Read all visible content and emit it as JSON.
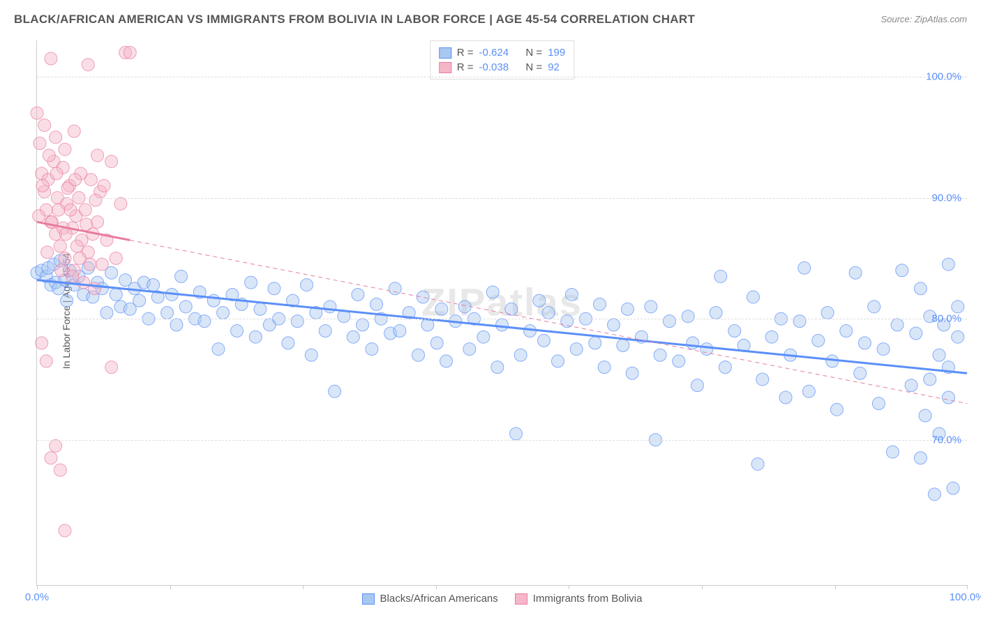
{
  "title": "BLACK/AFRICAN AMERICAN VS IMMIGRANTS FROM BOLIVIA IN LABOR FORCE | AGE 45-54 CORRELATION CHART",
  "source": "Source: ZipAtlas.com",
  "ylabel": "In Labor Force | Age 45-54",
  "watermark": "ZIPatlas",
  "chart": {
    "type": "scatter",
    "xlim": [
      0,
      100
    ],
    "ylim": [
      58,
      103
    ],
    "ytick_positions": [
      70,
      80,
      90,
      100
    ],
    "ytick_labels": [
      "70.0%",
      "80.0%",
      "90.0%",
      "100.0%"
    ],
    "xtick_positions": [
      0,
      14.3,
      28.6,
      42.9,
      57.2,
      71.5,
      85.8,
      100
    ],
    "xtick_labels_shown": {
      "0": "0.0%",
      "100": "100.0%"
    },
    "background_color": "#ffffff",
    "grid_color": "#dddddd",
    "marker_radius": 9,
    "marker_opacity": 0.45,
    "regression_line_width_solid": 3,
    "regression_line_width_dash": 1,
    "series": [
      {
        "name": "Blacks/African Americans",
        "color_fill": "#a9c8f0",
        "color_stroke": "#5b8ff9",
        "regression": {
          "x1": 0,
          "y1": 83.2,
          "x2": 100,
          "y2": 75.5,
          "solid_until_x": 100
        },
        "stats": {
          "R": "-0.624",
          "N": "199"
        },
        "points": [
          [
            0,
            83.8
          ],
          [
            0.5,
            84.0
          ],
          [
            1,
            83.5
          ],
          [
            1.2,
            84.2
          ],
          [
            1.5,
            82.8
          ],
          [
            1.8,
            84.5
          ],
          [
            2,
            83.0
          ],
          [
            2.3,
            82.5
          ],
          [
            2.5,
            84.8
          ],
          [
            3,
            83.2
          ],
          [
            3.2,
            81.5
          ],
          [
            3.5,
            84.0
          ],
          [
            4,
            82.8
          ],
          [
            4.5,
            83.5
          ],
          [
            5,
            82.0
          ],
          [
            5.5,
            84.2
          ],
          [
            6,
            81.8
          ],
          [
            6.5,
            83.0
          ],
          [
            7,
            82.5
          ],
          [
            7.5,
            80.5
          ],
          [
            8,
            83.8
          ],
          [
            8.5,
            82.0
          ],
          [
            9,
            81.0
          ],
          [
            9.5,
            83.2
          ],
          [
            10,
            80.8
          ],
          [
            10.5,
            82.5
          ],
          [
            11,
            81.5
          ],
          [
            11.5,
            83.0
          ],
          [
            12,
            80.0
          ],
          [
            12.5,
            82.8
          ],
          [
            13,
            81.8
          ],
          [
            14,
            80.5
          ],
          [
            14.5,
            82.0
          ],
          [
            15,
            79.5
          ],
          [
            15.5,
            83.5
          ],
          [
            16,
            81.0
          ],
          [
            17,
            80.0
          ],
          [
            17.5,
            82.2
          ],
          [
            18,
            79.8
          ],
          [
            19,
            81.5
          ],
          [
            19.5,
            77.5
          ],
          [
            20,
            80.5
          ],
          [
            21,
            82.0
          ],
          [
            21.5,
            79.0
          ],
          [
            22,
            81.2
          ],
          [
            23,
            83.0
          ],
          [
            23.5,
            78.5
          ],
          [
            24,
            80.8
          ],
          [
            25,
            79.5
          ],
          [
            25.5,
            82.5
          ],
          [
            26,
            80.0
          ],
          [
            27,
            78.0
          ],
          [
            27.5,
            81.5
          ],
          [
            28,
            79.8
          ],
          [
            29,
            82.8
          ],
          [
            29.5,
            77.0
          ],
          [
            30,
            80.5
          ],
          [
            31,
            79.0
          ],
          [
            31.5,
            81.0
          ],
          [
            32,
            74.0
          ],
          [
            33,
            80.2
          ],
          [
            34,
            78.5
          ],
          [
            34.5,
            82.0
          ],
          [
            35,
            79.5
          ],
          [
            36,
            77.5
          ],
          [
            36.5,
            81.2
          ],
          [
            37,
            80.0
          ],
          [
            38,
            78.8
          ],
          [
            38.5,
            82.5
          ],
          [
            39,
            79.0
          ],
          [
            40,
            80.5
          ],
          [
            41,
            77.0
          ],
          [
            41.5,
            81.8
          ],
          [
            42,
            79.5
          ],
          [
            43,
            78.0
          ],
          [
            43.5,
            80.8
          ],
          [
            44,
            76.5
          ],
          [
            45,
            79.8
          ],
          [
            46,
            81.0
          ],
          [
            46.5,
            77.5
          ],
          [
            47,
            80.0
          ],
          [
            48,
            78.5
          ],
          [
            49,
            82.2
          ],
          [
            49.5,
            76.0
          ],
          [
            50,
            79.5
          ],
          [
            51,
            80.8
          ],
          [
            51.5,
            70.5
          ],
          [
            52,
            77.0
          ],
          [
            53,
            79.0
          ],
          [
            54,
            81.5
          ],
          [
            54.5,
            78.2
          ],
          [
            55,
            80.5
          ],
          [
            56,
            76.5
          ],
          [
            57,
            79.8
          ],
          [
            57.5,
            82.0
          ],
          [
            58,
            77.5
          ],
          [
            59,
            80.0
          ],
          [
            60,
            78.0
          ],
          [
            60.5,
            81.2
          ],
          [
            61,
            76.0
          ],
          [
            62,
            79.5
          ],
          [
            63,
            77.8
          ],
          [
            63.5,
            80.8
          ],
          [
            64,
            75.5
          ],
          [
            65,
            78.5
          ],
          [
            66,
            81.0
          ],
          [
            66.5,
            70.0
          ],
          [
            67,
            77.0
          ],
          [
            68,
            79.8
          ],
          [
            69,
            76.5
          ],
          [
            70,
            80.2
          ],
          [
            70.5,
            78.0
          ],
          [
            71,
            74.5
          ],
          [
            72,
            77.5
          ],
          [
            73,
            80.5
          ],
          [
            73.5,
            83.5
          ],
          [
            74,
            76.0
          ],
          [
            75,
            79.0
          ],
          [
            76,
            77.8
          ],
          [
            77,
            81.8
          ],
          [
            77.5,
            68.0
          ],
          [
            78,
            75.0
          ],
          [
            79,
            78.5
          ],
          [
            80,
            80.0
          ],
          [
            80.5,
            73.5
          ],
          [
            81,
            77.0
          ],
          [
            82,
            79.8
          ],
          [
            82.5,
            84.2
          ],
          [
            83,
            74.0
          ],
          [
            84,
            78.2
          ],
          [
            85,
            80.5
          ],
          [
            85.5,
            76.5
          ],
          [
            86,
            72.5
          ],
          [
            87,
            79.0
          ],
          [
            88,
            83.8
          ],
          [
            88.5,
            75.5
          ],
          [
            89,
            78.0
          ],
          [
            90,
            81.0
          ],
          [
            90.5,
            73.0
          ],
          [
            91,
            77.5
          ],
          [
            92,
            69.0
          ],
          [
            92.5,
            79.5
          ],
          [
            93,
            84.0
          ],
          [
            94,
            74.5
          ],
          [
            94.5,
            78.8
          ],
          [
            95,
            82.5
          ],
          [
            95.5,
            72.0
          ],
          [
            96,
            80.2
          ],
          [
            96.5,
            65.5
          ],
          [
            97,
            77.0
          ],
          [
            97.5,
            79.5
          ],
          [
            98,
            73.5
          ],
          [
            98.5,
            66.0
          ],
          [
            98,
            84.5
          ],
          [
            99,
            78.5
          ],
          [
            97,
            70.5
          ],
          [
            96,
            75.0
          ],
          [
            95,
            68.5
          ],
          [
            99,
            81.0
          ],
          [
            98,
            76.0
          ]
        ]
      },
      {
        "name": "Immigrants from Bolivia",
        "color_fill": "#f5b6c8",
        "color_stroke": "#e87ca0",
        "regression": {
          "x1": 0,
          "y1": 88.0,
          "x2": 100,
          "y2": 73.0,
          "solid_until_x": 10
        },
        "stats": {
          "R": "-0.038",
          "N": "92"
        },
        "points": [
          [
            0,
            97.0
          ],
          [
            0.3,
            94.5
          ],
          [
            0.5,
            92.0
          ],
          [
            0.8,
            90.5
          ],
          [
            1,
            89.0
          ],
          [
            1.2,
            91.5
          ],
          [
            1.5,
            88.0
          ],
          [
            1.8,
            93.0
          ],
          [
            2,
            87.0
          ],
          [
            2.2,
            90.0
          ],
          [
            2.5,
            86.0
          ],
          [
            2.8,
            92.5
          ],
          [
            3,
            85.0
          ],
          [
            3.2,
            89.5
          ],
          [
            3.5,
            91.0
          ],
          [
            3.8,
            87.5
          ],
          [
            4,
            84.0
          ],
          [
            4.2,
            88.5
          ],
          [
            4.5,
            90.0
          ],
          [
            4.8,
            86.5
          ],
          [
            5,
            83.0
          ],
          [
            5.2,
            89.0
          ],
          [
            5.5,
            85.5
          ],
          [
            5.8,
            91.5
          ],
          [
            6,
            87.0
          ],
          [
            6.2,
            82.5
          ],
          [
            6.5,
            88.0
          ],
          [
            6.8,
            90.5
          ],
          [
            7,
            84.5
          ],
          [
            7.5,
            86.5
          ],
          [
            8,
            93.0
          ],
          [
            8.5,
            85.0
          ],
          [
            9,
            89.5
          ],
          [
            9.5,
            102.0
          ],
          [
            10,
            102.0
          ],
          [
            1.5,
            101.5
          ],
          [
            3,
            94.0
          ],
          [
            4,
            95.5
          ],
          [
            5.5,
            101.0
          ],
          [
            2,
            95.0
          ],
          [
            0.5,
            78.0
          ],
          [
            1,
            76.5
          ],
          [
            1.5,
            68.5
          ],
          [
            2,
            69.5
          ],
          [
            2.5,
            67.5
          ],
          [
            3,
            62.5
          ],
          [
            8,
            76.0
          ],
          [
            6.5,
            93.5
          ],
          [
            7.2,
            91.0
          ],
          [
            3.8,
            83.5
          ],
          [
            0.8,
            96.0
          ],
          [
            1.3,
            93.5
          ],
          [
            2.3,
            89.0
          ],
          [
            2.8,
            87.5
          ],
          [
            3.3,
            90.8
          ],
          [
            4.3,
            86.0
          ],
          [
            4.7,
            92.0
          ],
          [
            5.3,
            87.8
          ],
          [
            5.7,
            84.5
          ],
          [
            6.3,
            89.8
          ],
          [
            0.2,
            88.5
          ],
          [
            0.6,
            91.0
          ],
          [
            1.1,
            85.5
          ],
          [
            1.6,
            88.0
          ],
          [
            2.1,
            92.0
          ],
          [
            2.6,
            84.0
          ],
          [
            3.1,
            87.0
          ],
          [
            3.6,
            89.0
          ],
          [
            4.1,
            91.5
          ],
          [
            4.6,
            85.0
          ]
        ]
      }
    ]
  },
  "legend_labels": {
    "series1": "Blacks/African Americans",
    "series2": "Immigrants from Bolivia"
  },
  "stats_labels": {
    "R": "R = ",
    "N": "N = "
  }
}
